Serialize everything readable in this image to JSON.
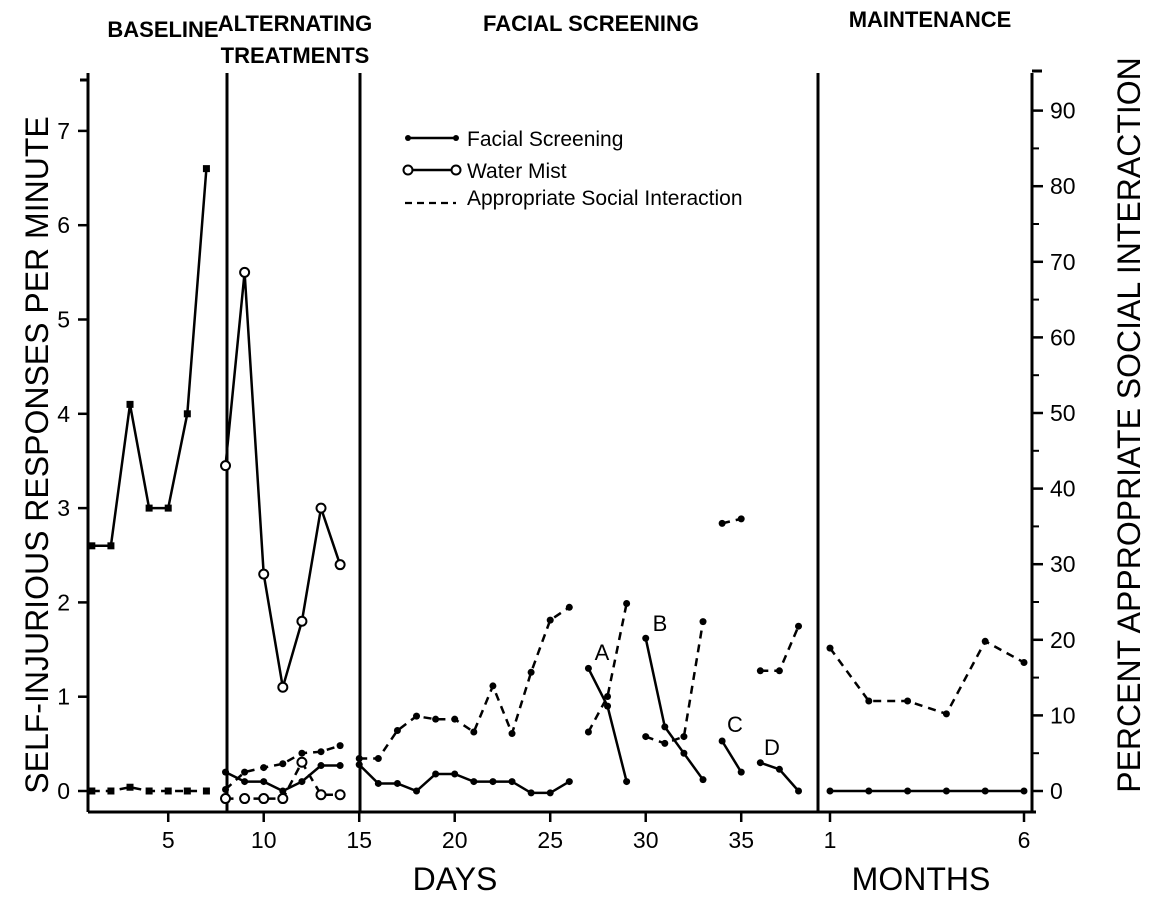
{
  "chart_data": {
    "type": "line",
    "phases": [
      "BASELINE",
      "ALTERNATING",
      "TREATMENTS",
      "FACIAL SCREENING",
      "MAINTENANCE"
    ],
    "xlabel_days": "DAYS",
    "xlabel_months": "MONTHS",
    "ylabel_left": "SELF-INJURIOUS RESPONSES PER MINUTE",
    "ylabel_right": "PERCENT APPROPRIATE SOCIAL INTERACTION",
    "yticks_left": [
      "0",
      "1",
      "2",
      "3",
      "4",
      "5",
      "6",
      "7"
    ],
    "yticks_right": [
      "0",
      "10",
      "20",
      "30",
      "40",
      "50",
      "60",
      "70",
      "80",
      "90"
    ],
    "xticks_days": [
      "5",
      "10",
      "15",
      "20",
      "25",
      "30",
      "35"
    ],
    "xticks_months": [
      "1",
      "6"
    ],
    "ylim_left": [
      0,
      7.5
    ],
    "ylim_right": [
      0,
      94
    ],
    "legend": {
      "facial": "Facial Screening",
      "water": "Water Mist",
      "social": "Appropriate Social Interaction"
    },
    "annotations": [
      "A",
      "B",
      "C",
      "D"
    ],
    "series": {
      "baseline_sib": [
        [
          1,
          2.6
        ],
        [
          2,
          2.6
        ],
        [
          3,
          4.1
        ],
        [
          4,
          3.0
        ],
        [
          5,
          3.0
        ],
        [
          6,
          4.0
        ],
        [
          7,
          6.6
        ]
      ],
      "baseline_social": [
        [
          1,
          0
        ],
        [
          2,
          0
        ],
        [
          3,
          0.5
        ],
        [
          4,
          0
        ],
        [
          5,
          0
        ],
        [
          6,
          0
        ],
        [
          7,
          0
        ]
      ],
      "alt_facial_sib": [
        [
          8,
          0.2
        ],
        [
          9,
          0.1
        ],
        [
          10,
          0.1
        ],
        [
          11,
          0.0
        ],
        [
          12,
          0.1
        ],
        [
          13,
          0.27
        ],
        [
          14,
          0.27
        ]
      ],
      "alt_water_sib": [
        [
          8,
          3.45
        ],
        [
          9,
          5.5
        ],
        [
          10,
          2.3
        ],
        [
          11,
          1.1
        ],
        [
          12,
          1.8
        ],
        [
          13,
          3.0
        ],
        [
          14,
          2.4
        ]
      ],
      "alt_facial_social": [
        [
          8,
          0.2
        ],
        [
          9,
          2.5
        ],
        [
          10,
          3.1
        ],
        [
          11,
          3.6
        ],
        [
          12,
          5.0
        ],
        [
          13,
          5.2
        ],
        [
          14,
          6.0
        ]
      ],
      "alt_water_social": [
        [
          8,
          -1
        ],
        [
          9,
          -1
        ],
        [
          10,
          -1
        ],
        [
          11,
          -1
        ],
        [
          12,
          3.8
        ],
        [
          13,
          -0.5
        ],
        [
          14,
          -0.5
        ]
      ],
      "fs_sib": [
        [
          [
            15,
            0.28
          ],
          [
            16,
            0.08
          ],
          [
            17,
            0.08
          ],
          [
            18,
            0.0
          ],
          [
            19,
            0.18
          ],
          [
            20,
            0.18
          ],
          [
            21,
            0.1
          ],
          [
            22,
            0.1
          ],
          [
            23,
            0.1
          ],
          [
            24,
            -0.02
          ],
          [
            25,
            -0.02
          ],
          [
            26,
            0.1
          ]
        ],
        [
          [
            27,
            1.3
          ],
          [
            28,
            0.9
          ],
          [
            29,
            0.1
          ]
        ],
        [
          [
            30,
            1.62
          ],
          [
            31,
            0.68
          ],
          [
            32,
            0.4
          ],
          [
            33,
            0.12
          ]
        ],
        [
          [
            34,
            0.53
          ],
          [
            35,
            0.2
          ]
        ],
        [
          [
            36,
            0.3
          ],
          [
            37,
            0.23
          ],
          [
            38,
            0.0
          ]
        ]
      ],
      "fs_social": [
        [
          [
            15,
            4.3
          ],
          [
            16,
            4.3
          ],
          [
            17,
            8.0
          ],
          [
            18,
            9.9
          ],
          [
            19,
            9.5
          ],
          [
            20,
            9.5
          ],
          [
            21,
            7.8
          ],
          [
            22,
            13.9
          ],
          [
            23,
            7.6
          ],
          [
            24,
            15.7
          ],
          [
            25,
            22.6
          ],
          [
            26,
            24.3
          ]
        ],
        [
          [
            27,
            7.8
          ],
          [
            28,
            12.5
          ],
          [
            29,
            24.8
          ]
        ],
        [
          [
            30,
            7.2
          ],
          [
            31,
            6.3
          ],
          [
            32,
            7.2
          ],
          [
            33,
            22.4
          ]
        ],
        [
          [
            34,
            35.4
          ],
          [
            35,
            36.0
          ]
        ],
        [
          [
            36,
            15.9
          ],
          [
            37,
            15.9
          ],
          [
            38,
            21.8
          ]
        ]
      ],
      "maint_sib": [
        [
          1,
          0
        ],
        [
          2,
          0
        ],
        [
          3,
          0
        ],
        [
          4,
          0
        ],
        [
          5,
          0
        ],
        [
          6,
          0
        ]
      ],
      "maint_social": [
        [
          1,
          18.9
        ],
        [
          2,
          11.9
        ],
        [
          3,
          11.9
        ],
        [
          4,
          10.2
        ],
        [
          5,
          19.8
        ],
        [
          6,
          17.0
        ]
      ]
    }
  }
}
